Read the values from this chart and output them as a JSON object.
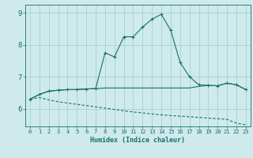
{
  "xlabel": "Humidex (Indice chaleur)",
  "ylabel": "",
  "xlim": [
    -0.5,
    23.5
  ],
  "ylim": [
    5.45,
    9.25
  ],
  "yticks": [
    6,
    7,
    8,
    9
  ],
  "xticks": [
    0,
    1,
    2,
    3,
    4,
    5,
    6,
    7,
    8,
    9,
    10,
    11,
    12,
    13,
    14,
    15,
    16,
    17,
    18,
    19,
    20,
    21,
    22,
    23
  ],
  "bg_color": "#ceeaea",
  "grid_color": "#a8cfcf",
  "line_color": "#1a6e6e",
  "line1_x": [
    0,
    1,
    2,
    3,
    4,
    5,
    6,
    7,
    8,
    9,
    10,
    11,
    12,
    13,
    14,
    15,
    16,
    17,
    18,
    19,
    20,
    21,
    22,
    23
  ],
  "line1_y": [
    6.3,
    6.45,
    6.55,
    6.58,
    6.6,
    6.6,
    6.62,
    6.63,
    7.75,
    7.62,
    8.25,
    8.25,
    8.55,
    8.8,
    8.95,
    8.45,
    7.45,
    7.0,
    6.75,
    6.73,
    6.72,
    6.8,
    6.75,
    6.6
  ],
  "line2_x": [
    0,
    1,
    2,
    3,
    4,
    5,
    6,
    7,
    8,
    9,
    10,
    11,
    12,
    13,
    14,
    15,
    16,
    17,
    18,
    19,
    20,
    21,
    22,
    23
  ],
  "line2_y": [
    6.3,
    6.45,
    6.55,
    6.58,
    6.6,
    6.6,
    6.62,
    6.63,
    6.65,
    6.65,
    6.65,
    6.65,
    6.65,
    6.65,
    6.65,
    6.65,
    6.65,
    6.65,
    6.7,
    6.73,
    6.72,
    6.8,
    6.75,
    6.6
  ],
  "line3_x": [
    0,
    1,
    2,
    3,
    4,
    5,
    6,
    7,
    8,
    9,
    10,
    11,
    12,
    13,
    14,
    15,
    16,
    17,
    18,
    19,
    20,
    21,
    22,
    23
  ],
  "line3_y": [
    6.3,
    6.35,
    6.28,
    6.22,
    6.18,
    6.14,
    6.1,
    6.06,
    6.02,
    5.98,
    5.94,
    5.9,
    5.87,
    5.84,
    5.81,
    5.79,
    5.77,
    5.75,
    5.73,
    5.71,
    5.69,
    5.67,
    5.55,
    5.5
  ]
}
